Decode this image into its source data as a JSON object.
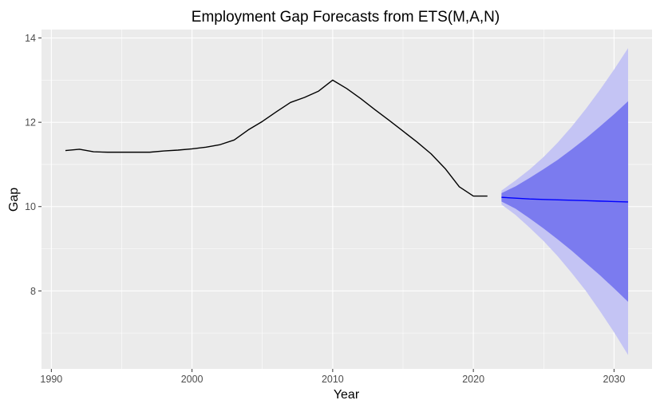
{
  "chart_data": {
    "type": "line",
    "title": "Employment Gap Forecasts from ETS(M,A,N)",
    "xlabel": "Year",
    "ylabel": "Gap",
    "xlim": [
      1989.3,
      2032.7
    ],
    "ylim": [
      6.15,
      14.2
    ],
    "x_ticks": [
      1990,
      2000,
      2010,
      2020,
      2030
    ],
    "x_tick_labels": [
      "1990",
      "2000",
      "2010",
      "2020",
      "2030"
    ],
    "y_ticks": [
      8,
      10,
      12,
      14
    ],
    "y_tick_labels": [
      "8",
      "10",
      "12",
      "14"
    ],
    "grid": true,
    "colors": {
      "panel_bg": "#ebebeb",
      "grid_major": "#ffffff",
      "history_line": "#000000",
      "forecast_line": "#0000ff",
      "pi80_fill": "#7b7bef",
      "pi95_fill": "#c4c4f4"
    },
    "series": [
      {
        "name": "history",
        "x": [
          1991,
          1992,
          1993,
          1994,
          1995,
          1996,
          1997,
          1998,
          1999,
          2000,
          2001,
          2002,
          2003,
          2004,
          2005,
          2006,
          2007,
          2008,
          2009,
          2010,
          2011,
          2012,
          2013,
          2014,
          2015,
          2016,
          2017,
          2018,
          2019,
          2020,
          2021
        ],
        "values": [
          11.33,
          11.36,
          11.3,
          11.29,
          11.29,
          11.29,
          11.29,
          11.32,
          11.34,
          11.37,
          11.41,
          11.47,
          11.58,
          11.82,
          12.02,
          12.25,
          12.47,
          12.59,
          12.74,
          13.0,
          12.8,
          12.56,
          12.3,
          12.05,
          11.79,
          11.53,
          11.25,
          10.9,
          10.47,
          10.25,
          10.25
        ]
      },
      {
        "name": "forecast",
        "x": [
          2022,
          2023,
          2024,
          2025,
          2026,
          2027,
          2028,
          2029,
          2030,
          2031
        ],
        "values": [
          10.22,
          10.2,
          10.18,
          10.17,
          10.16,
          10.15,
          10.14,
          10.13,
          10.12,
          10.11
        ]
      }
    ],
    "intervals": [
      {
        "level": "95%",
        "x": [
          2022,
          2023,
          2024,
          2025,
          2026,
          2027,
          2028,
          2029,
          2030,
          2031
        ],
        "lower": [
          10.05,
          9.8,
          9.5,
          9.18,
          8.82,
          8.42,
          8.0,
          7.52,
          7.02,
          6.48
        ],
        "upper": [
          10.38,
          10.62,
          10.88,
          11.18,
          11.52,
          11.9,
          12.32,
          12.77,
          13.25,
          13.76
        ]
      },
      {
        "level": "80%",
        "x": [
          2022,
          2023,
          2024,
          2025,
          2026,
          2027,
          2028,
          2029,
          2030,
          2031
        ],
        "lower": [
          10.12,
          9.95,
          9.72,
          9.48,
          9.22,
          8.95,
          8.66,
          8.37,
          8.06,
          7.74
        ],
        "upper": [
          10.32,
          10.48,
          10.68,
          10.89,
          11.11,
          11.36,
          11.62,
          11.9,
          12.19,
          12.5
        ]
      }
    ]
  }
}
